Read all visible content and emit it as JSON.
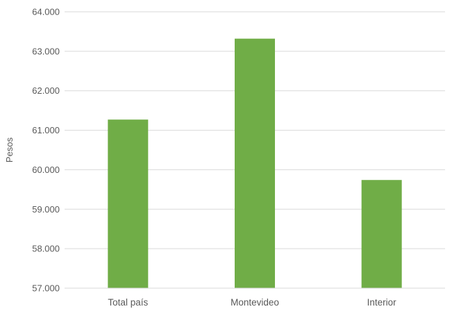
{
  "chart_data": {
    "type": "bar",
    "title": "",
    "xlabel": "",
    "ylabel": "Pesos",
    "categories": [
      "Total país",
      "Montevideo",
      "Interior"
    ],
    "values": [
      61270,
      63320,
      59740
    ],
    "ylim": [
      57000,
      64000
    ],
    "yticks": [
      {
        "value": 57000,
        "label": "57.000"
      },
      {
        "value": 58000,
        "label": "58.000"
      },
      {
        "value": 59000,
        "label": "59.000"
      },
      {
        "value": 60000,
        "label": "60.000"
      },
      {
        "value": 61000,
        "label": "61.000"
      },
      {
        "value": 62000,
        "label": "62.000"
      },
      {
        "value": 63000,
        "label": "63.000"
      },
      {
        "value": 64000,
        "label": "64.000"
      }
    ],
    "grid": true,
    "legend": "none",
    "bar_color": "#70AD47",
    "grid_color": "#D9D9D9"
  }
}
